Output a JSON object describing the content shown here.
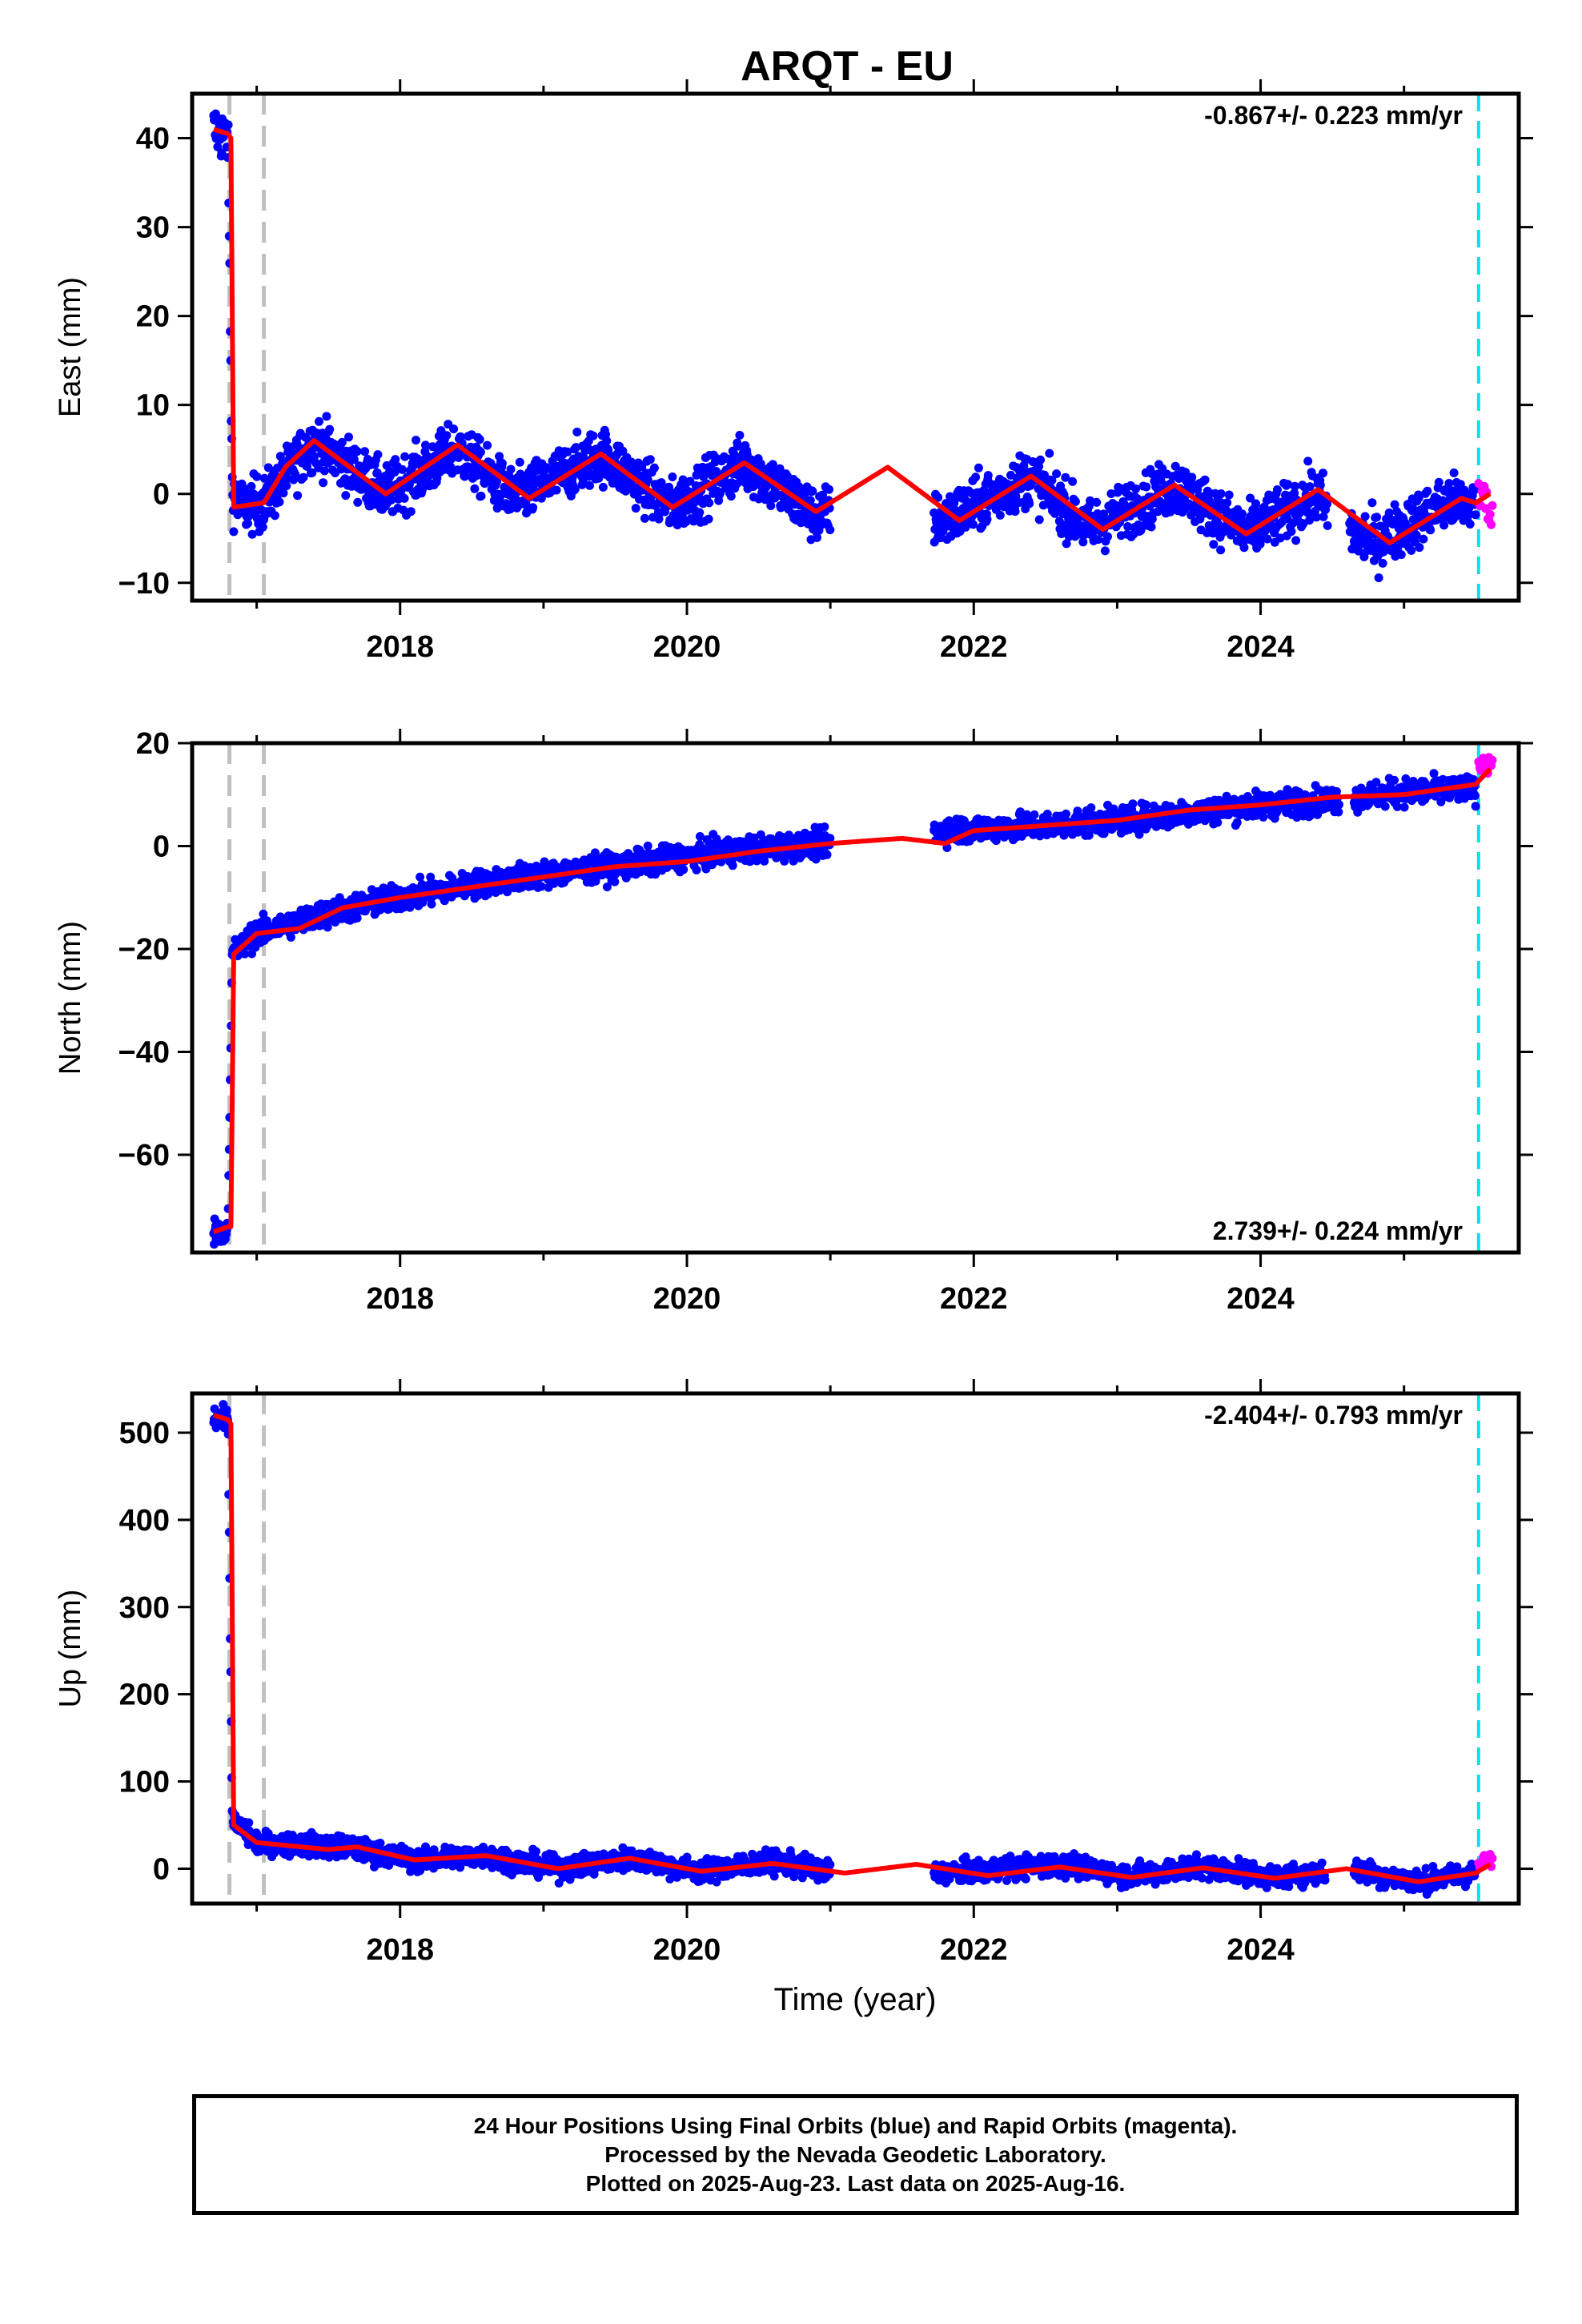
{
  "title": "ARQT - EU",
  "xlabel": "Time (year)",
  "footer": {
    "line1": "24 Hour Positions Using Final Orbits (blue) and Rapid Orbits (magenta).",
    "line2": "Processed by the Nevada Geodetic Laboratory.",
    "line3": "Plotted on 2025-Aug-23. Last data on 2025-Aug-16."
  },
  "colors": {
    "final_orbits": "#0000ff",
    "rapid_orbits": "#ff00ff",
    "model_fit": "#ff0000",
    "equipment_change": "#c0c0c0",
    "last_data_marker": "#00e5e5"
  },
  "chart_data": [
    {
      "type": "scatter",
      "ylabel": "East (mm)",
      "rate_text": "-0.867+/- 0.223 mm/yr",
      "rate_position": "top-right",
      "xlim": [
        2016.55,
        2025.8
      ],
      "ylim": [
        -12,
        45
      ],
      "xticks": [
        2018,
        2020,
        2022,
        2024
      ],
      "yticks": [
        -10,
        0,
        10,
        20,
        30,
        40
      ],
      "vlines_gray": [
        2016.81,
        2017.05
      ],
      "vline_cyan": 2025.52,
      "series": [
        {
          "name": "Final orbits",
          "color": "#0000ff",
          "trend": {
            "x": [
              2016.7,
              2016.8,
              2016.83,
              2016.9,
              2017.05,
              2017.4,
              2017.9,
              2018.4,
              2018.8,
              2019.4,
              2019.9,
              2020.4,
              2020.9,
              2021.0,
              2021.8,
              2022.4,
              2022.8,
              2023.4,
              2023.9,
              2024.4,
              2024.5,
              2024.8,
              2025.3,
              2025.5
            ],
            "y": [
              41,
              40,
              0,
              -1.5,
              -1,
              6,
              0,
              5,
              -0.5,
              4.5,
              -1.5,
              3.5,
              -2.5,
              -2,
              -3,
              2,
              -4,
              1,
              -4.5,
              0,
              -3,
              -5.5,
              -1,
              -1
            ]
          },
          "spread": 2.2,
          "gaps": [
            [
              2021.0,
              2021.72
            ],
            [
              2024.47,
              2024.62
            ]
          ]
        },
        {
          "name": "Rapid orbits",
          "color": "#ff00ff",
          "trend": {
            "x": [
              2025.52,
              2025.62
            ],
            "y": [
              0,
              -2
            ]
          },
          "spread": 1.5
        }
      ],
      "model": {
        "x": [
          2016.7,
          2016.8,
          2016.82,
          2016.84,
          2017.05,
          2017.2,
          2017.4,
          2017.9,
          2018.4,
          2018.9,
          2019.4,
          2019.9,
          2020.4,
          2020.9,
          2021.4,
          2021.9,
          2022.4,
          2022.9,
          2023.4,
          2023.9,
          2024.4,
          2024.9,
          2025.4,
          2025.5,
          2025.6
        ],
        "y": [
          41,
          40.5,
          40,
          -1.5,
          -1,
          3,
          6,
          0,
          5.5,
          -0.5,
          4.5,
          -1.5,
          3.5,
          -2,
          3,
          -3,
          2,
          -4,
          1,
          -4.5,
          0.5,
          -5.5,
          -0.5,
          -1,
          0
        ]
      }
    },
    {
      "type": "scatter",
      "ylabel": "North (mm)",
      "rate_text": "2.739+/- 0.224 mm/yr",
      "rate_position": "bottom-right",
      "xlim": [
        2016.55,
        2025.8
      ],
      "ylim": [
        -79,
        20
      ],
      "xticks": [
        2018,
        2020,
        2022,
        2024
      ],
      "yticks": [
        -60,
        -40,
        -20,
        0,
        20
      ],
      "vlines_gray": [
        2016.81,
        2017.05
      ],
      "vline_cyan": 2025.52,
      "series": [
        {
          "name": "Final orbits",
          "color": "#0000ff",
          "trend": {
            "x": [
              2016.7,
              2016.8,
              2016.83,
              2017.0,
              2017.5,
              2018.0,
              2018.5,
              2019.0,
              2019.5,
              2020.0,
              2020.5,
              2021.0,
              2021.8,
              2022.5,
              2023.0,
              2023.5,
              2024.0,
              2024.5,
              2025.0,
              2025.5
            ],
            "y": [
              -75,
              -74,
              -21,
              -17,
              -13,
              -10,
              -7.5,
              -5.5,
              -4,
              -2,
              -0.5,
              0.5,
              3,
              4,
              5,
              6.5,
              8,
              9,
              10.5,
              11
            ]
          },
          "spread": 1.8,
          "gaps": [
            [
              2021.0,
              2021.72
            ],
            [
              2024.55,
              2024.65
            ]
          ]
        },
        {
          "name": "Rapid orbits",
          "color": "#ff00ff",
          "trend": {
            "x": [
              2025.52,
              2025.62
            ],
            "y": [
              15,
              16.5
            ]
          },
          "spread": 1.2
        }
      ],
      "model": {
        "x": [
          2016.7,
          2016.8,
          2016.82,
          2016.84,
          2017.0,
          2017.3,
          2017.6,
          2018.0,
          2018.5,
          2019.0,
          2019.5,
          2020.0,
          2020.5,
          2021.0,
          2021.5,
          2021.8,
          2022.0,
          2022.5,
          2023.0,
          2023.5,
          2024.0,
          2024.5,
          2025.0,
          2025.5,
          2025.6
        ],
        "y": [
          -75,
          -74,
          -74,
          -21,
          -17,
          -16,
          -12,
          -10,
          -8,
          -6,
          -4,
          -3,
          -1,
          0.5,
          1.5,
          0.5,
          3,
          4,
          5,
          7,
          8,
          9.5,
          10,
          12,
          15
        ]
      }
    },
    {
      "type": "scatter",
      "ylabel": "Up (mm)",
      "rate_text": "-2.404+/- 0.793 mm/yr",
      "rate_position": "top-right",
      "xlim": [
        2016.55,
        2025.8
      ],
      "ylim": [
        -40,
        545
      ],
      "xticks": [
        2018,
        2020,
        2022,
        2024
      ],
      "yticks": [
        0,
        100,
        200,
        300,
        400,
        500
      ],
      "vlines_gray": [
        2016.81,
        2017.05
      ],
      "vline_cyan": 2025.52,
      "series": [
        {
          "name": "Final orbits",
          "color": "#0000ff",
          "trend": {
            "x": [
              2016.7,
              2016.8,
              2016.83,
              2017.0,
              2017.6,
              2018.1,
              2018.6,
              2019.1,
              2019.6,
              2020.1,
              2020.6,
              2021.0,
              2021.8,
              2022.6,
              2023.1,
              2023.6,
              2024.1,
              2024.6,
              2025.1,
              2025.5
            ],
            "y": [
              520,
              515,
              55,
              30,
              25,
              10,
              15,
              0,
              12,
              -3,
              8,
              -2,
              -5,
              5,
              -8,
              3,
              -10,
              0,
              -15,
              -5
            ]
          },
          "spread": 9,
          "gaps": [
            [
              2021.0,
              2021.72
            ],
            [
              2024.45,
              2024.65
            ]
          ]
        },
        {
          "name": "Rapid orbits",
          "color": "#ff00ff",
          "trend": {
            "x": [
              2025.52,
              2025.62
            ],
            "y": [
              5,
              10
            ]
          },
          "spread": 6
        }
      ],
      "model": {
        "x": [
          2016.7,
          2016.8,
          2016.82,
          2016.84,
          2017.0,
          2017.5,
          2017.7,
          2018.1,
          2018.6,
          2019.1,
          2019.6,
          2020.1,
          2020.6,
          2021.1,
          2021.6,
          2022.1,
          2022.6,
          2023.1,
          2023.6,
          2024.1,
          2024.6,
          2025.1,
          2025.5,
          2025.6
        ],
        "y": [
          520,
          515,
          510,
          50,
          30,
          22,
          25,
          10,
          15,
          0,
          12,
          -3,
          6,
          -5,
          5,
          -8,
          2,
          -10,
          1,
          -11,
          0,
          -15,
          -5,
          5
        ]
      }
    }
  ]
}
